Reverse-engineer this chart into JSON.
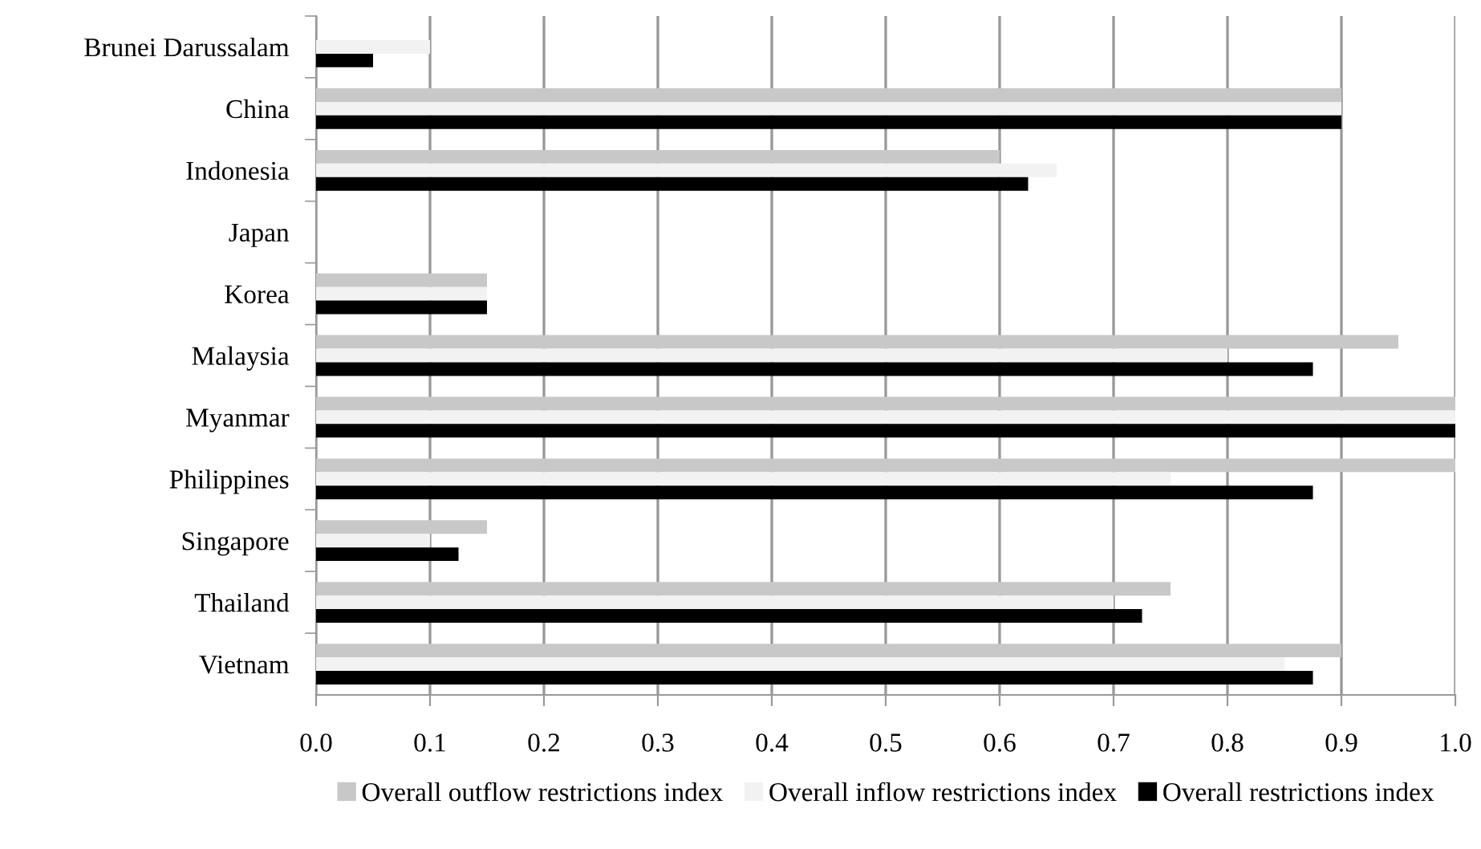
{
  "chart_data": {
    "type": "bar",
    "orientation": "horizontal",
    "categories": [
      "Brunei Darussalam",
      "China",
      "Indonesia",
      "Japan",
      "Korea",
      "Malaysia",
      "Myanmar",
      "Philippines",
      "Singapore",
      "Thailand",
      "Vietnam"
    ],
    "series": [
      {
        "name": "Overall outflow restrictions index",
        "color": "#c8c8c8",
        "values": [
          0,
          0.9,
          0.6,
          0,
          0.15,
          0.95,
          1.0,
          1.0,
          0.15,
          0.75,
          0.9
        ]
      },
      {
        "name": "Overall inflow restrictions index",
        "color": "#f2f2f2",
        "values": [
          0.1,
          0.9,
          0.65,
          0,
          0.15,
          0.8,
          1.0,
          0.75,
          0.1,
          0.7,
          0.85
        ]
      },
      {
        "name": "Overall restrictions index",
        "color": "#000000",
        "values": [
          0.05,
          0.9,
          0.625,
          0,
          0.15,
          0.875,
          1.0,
          0.875,
          0.125,
          0.725,
          0.875
        ]
      }
    ],
    "xlim": [
      0,
      1.0
    ],
    "xticks": [
      {
        "value": 0,
        "label": "0.0"
      },
      {
        "value": 0.1,
        "label": "0.1"
      },
      {
        "value": 0.2,
        "label": "0.2"
      },
      {
        "value": 0.3,
        "label": "0.3"
      },
      {
        "value": 0.4,
        "label": "0.4"
      },
      {
        "value": 0.5,
        "label": "0.5"
      },
      {
        "value": 0.6,
        "label": "0.6"
      },
      {
        "value": 0.7,
        "label": "0.7"
      },
      {
        "value": 0.8,
        "label": "0.8"
      },
      {
        "value": 0.9,
        "label": "0.9"
      },
      {
        "value": 1.0,
        "label": "1.0"
      }
    ],
    "grid": "x",
    "legend": "bottom"
  }
}
